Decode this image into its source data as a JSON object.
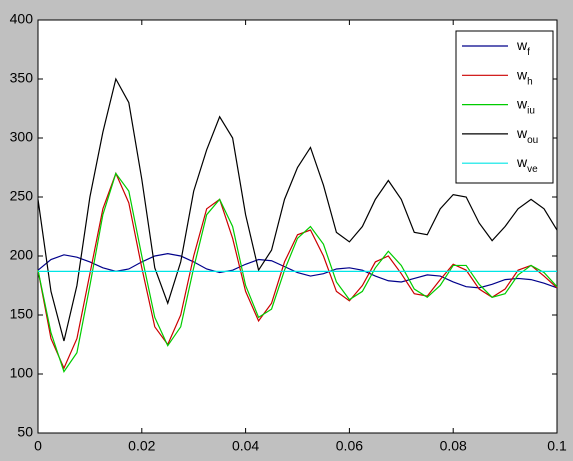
{
  "chart_data": {
    "type": "line",
    "x": [
      0,
      0.0025,
      0.005,
      0.0075,
      0.01,
      0.0125,
      0.015,
      0.0175,
      0.02,
      0.0225,
      0.025,
      0.0275,
      0.03,
      0.0325,
      0.035,
      0.0375,
      0.04,
      0.0425,
      0.045,
      0.0475,
      0.05,
      0.0525,
      0.055,
      0.0575,
      0.06,
      0.0625,
      0.065,
      0.0675,
      0.07,
      0.0725,
      0.075,
      0.0775,
      0.08,
      0.0825,
      0.085,
      0.0875,
      0.09,
      0.0925,
      0.095,
      0.0975,
      0.1
    ],
    "series": [
      {
        "name": "wf",
        "color": "#00008b",
        "values": [
          188,
          197,
          201,
          199,
          195,
          190,
          187,
          189,
          195,
          200,
          202,
          200,
          195,
          189,
          186,
          188,
          193,
          197,
          196,
          191,
          186,
          183,
          185,
          189,
          190,
          188,
          183,
          179,
          178,
          181,
          184,
          183,
          178,
          174,
          173,
          176,
          180,
          181,
          180,
          177,
          173
        ]
      },
      {
        "name": "wh",
        "color": "#cc0000",
        "values": [
          188,
          130,
          105,
          130,
          185,
          240,
          270,
          245,
          190,
          140,
          125,
          150,
          200,
          240,
          248,
          215,
          170,
          145,
          160,
          195,
          218,
          222,
          200,
          170,
          162,
          175,
          195,
          200,
          185,
          168,
          166,
          180,
          193,
          188,
          172,
          165,
          172,
          188,
          192,
          183,
          173
        ]
      },
      {
        "name": "wiu",
        "color": "#00cc00",
        "values": [
          188,
          135,
          102,
          118,
          175,
          235,
          270,
          255,
          200,
          148,
          124,
          140,
          190,
          235,
          248,
          225,
          175,
          148,
          155,
          188,
          215,
          225,
          210,
          178,
          163,
          170,
          190,
          204,
          192,
          172,
          165,
          175,
          192,
          192,
          176,
          165,
          168,
          184,
          192,
          186,
          174
        ]
      },
      {
        "name": "wou",
        "color": "#000000",
        "values": [
          248,
          170,
          128,
          175,
          250,
          305,
          350,
          330,
          265,
          190,
          160,
          195,
          255,
          290,
          318,
          300,
          235,
          188,
          205,
          248,
          275,
          292,
          260,
          220,
          212,
          225,
          248,
          264,
          248,
          220,
          218,
          240,
          252,
          250,
          228,
          213,
          225,
          240,
          248,
          240,
          222
        ]
      },
      {
        "name": "wve",
        "color": "#00e5e5",
        "values": [
          187,
          187,
          187,
          187,
          187,
          187,
          187,
          187,
          187,
          187,
          187,
          187,
          187,
          187,
          187,
          187,
          187,
          187,
          187,
          187,
          187,
          187,
          187,
          187,
          187,
          187,
          187,
          187,
          187,
          187,
          187,
          187,
          187,
          187,
          187,
          187,
          187,
          187,
          187,
          187,
          187
        ]
      }
    ],
    "xlim": [
      0,
      0.1
    ],
    "xticks": [
      0,
      0.02,
      0.04,
      0.06,
      0.08,
      0.1
    ],
    "ylim": [
      50,
      400
    ],
    "yticks": [
      50,
      100,
      150,
      200,
      250,
      300,
      350,
      400
    ],
    "legend": "top-right"
  }
}
